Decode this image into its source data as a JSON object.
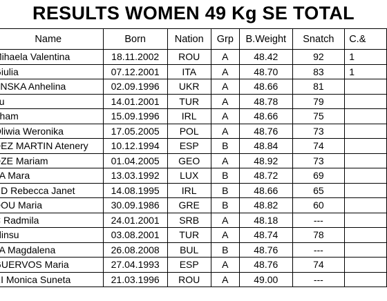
{
  "title": "RESULTS WOMEN 49 Kg SE TOTAL",
  "headers": [
    "Name",
    "Born",
    "Nation",
    "Grp",
    "B.Weight",
    "Snatch",
    "C.&"
  ],
  "rows": [
    {
      "name": "Mihaela Valentina",
      "born": "18.11.2002",
      "nation": "ROU",
      "grp": "A",
      "bw": "48.42",
      "snatch": "92",
      "cj": "1"
    },
    {
      "name": "Giulia",
      "born": "07.12.2001",
      "nation": "ITA",
      "grp": "A",
      "bw": "48.70",
      "snatch": "83",
      "cj": "1"
    },
    {
      "name": "YNSKA Anhelina",
      "born": "02.09.1996",
      "nation": "UKR",
      "grp": "A",
      "bw": "48.66",
      "snatch": "81",
      "cj": ""
    },
    {
      "name": "gu",
      "born": "14.01.2001",
      "nation": "TUR",
      "grp": "A",
      "bw": "48.78",
      "snatch": "79",
      "cj": ""
    },
    {
      "name": "Tham",
      "born": "15.09.1996",
      "nation": "IRL",
      "grp": "A",
      "bw": "48.66",
      "snatch": "75",
      "cj": ""
    },
    {
      "name": "Oliwia Weronika",
      "born": "17.05.2005",
      "nation": "POL",
      "grp": "A",
      "bw": "48.76",
      "snatch": "73",
      "cj": ""
    },
    {
      "name": "DEZ MARTIN Atenery",
      "born": "10.12.1994",
      "nation": "ESP",
      "grp": "B",
      "bw": "48.84",
      "snatch": "74",
      "cj": ""
    },
    {
      "name": "DZE Mariam",
      "born": "01.04.2005",
      "nation": "GEO",
      "grp": "A",
      "bw": "48.92",
      "snatch": "73",
      "cj": ""
    },
    {
      "name": "LA Mara",
      "born": "13.03.1992",
      "nation": "LUX",
      "grp": "B",
      "bw": "48.72",
      "snatch": "69",
      "cj": ""
    },
    {
      "name": "ND Rebecca Janet",
      "born": "14.08.1995",
      "nation": "IRL",
      "grp": "B",
      "bw": "48.66",
      "snatch": "65",
      "cj": ""
    },
    {
      "name": "DOU Maria",
      "born": "30.09.1986",
      "nation": "GRE",
      "grp": "B",
      "bw": "48.82",
      "snatch": "60",
      "cj": ""
    },
    {
      "name": "C Radmila",
      "born": "24.01.2001",
      "nation": "SRB",
      "grp": "A",
      "bw": "48.18",
      "snatch": "---",
      "cj": ""
    },
    {
      "name": "elinsu",
      "born": "03.08.2001",
      "nation": "TUR",
      "grp": "A",
      "bw": "48.74",
      "snatch": "78",
      "cj": ""
    },
    {
      "name": "TA Magdalena",
      "born": "26.08.2008",
      "nation": "BUL",
      "grp": "B",
      "bw": "48.76",
      "snatch": "---",
      "cj": ""
    },
    {
      "name": "GUERVOS Maria",
      "born": "27.04.1993",
      "nation": "ESP",
      "grp": "A",
      "bw": "48.76",
      "snatch": "74",
      "cj": ""
    },
    {
      "name": "RI Monica Suneta",
      "born": "21.03.1996",
      "nation": "ROU",
      "grp": "A",
      "bw": "49.00",
      "snatch": "---",
      "cj": ""
    }
  ]
}
